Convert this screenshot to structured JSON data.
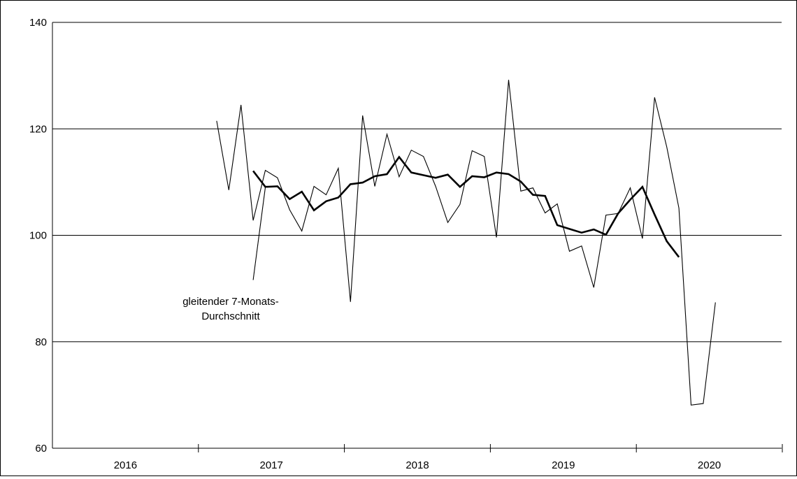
{
  "chart_data": {
    "type": "line",
    "title": "",
    "xlabel": "",
    "ylabel": "",
    "ylim": [
      60,
      140
    ],
    "y_ticks": [
      60,
      80,
      100,
      120,
      140
    ],
    "grid": "horizontal",
    "x_axis": {
      "years": [
        "2016",
        "2017",
        "2018",
        "2019",
        "2020"
      ],
      "months_per_year": 12,
      "year_start_index": 0
    },
    "series": [
      {
        "name": "",
        "style": "thin",
        "color": "#000000",
        "start_index": 13,
        "values": [
          121.5,
          108.5,
          124.5,
          102.8,
          112.2,
          110.8,
          104.8,
          100.8,
          109.2,
          107.6,
          112.6,
          87.5,
          122.5,
          109.2,
          119.0,
          111.0,
          116.0,
          114.8,
          109.2,
          102.4,
          105.8,
          115.9,
          114.8,
          99.6,
          129.2,
          108.3,
          108.9,
          104.2,
          105.9,
          97.0,
          98.0,
          90.2,
          103.8,
          104.1,
          108.9,
          99.4,
          125.9,
          116.6,
          105.1,
          68.1,
          68.4,
          87.4
        ]
      },
      {
        "name": "",
        "style": "thin",
        "color": "#000000",
        "start_index": 16,
        "values": [
          91.6,
          109.0
        ]
      },
      {
        "name": "gleitender 7-Monats-Durchschnitt",
        "style": "thick",
        "color": "#000000",
        "start_index": 16,
        "values": [
          112.1,
          109.1,
          109.2,
          106.8,
          108.2,
          104.7,
          106.4,
          107.1,
          109.6,
          109.9,
          111.1,
          111.5,
          114.7,
          111.8,
          111.3,
          110.8,
          111.4,
          109.1,
          111.1,
          110.9,
          111.8,
          111.5,
          110.1,
          107.6,
          107.4,
          101.9,
          101.2,
          100.5,
          101.1,
          100.1,
          104.1,
          106.7,
          109.1,
          103.9,
          98.9,
          95.9
        ]
      }
    ],
    "annotations": [
      {
        "lines": [
          "gleitender 7-Monats-",
          "Durchschnitt"
        ]
      }
    ]
  }
}
